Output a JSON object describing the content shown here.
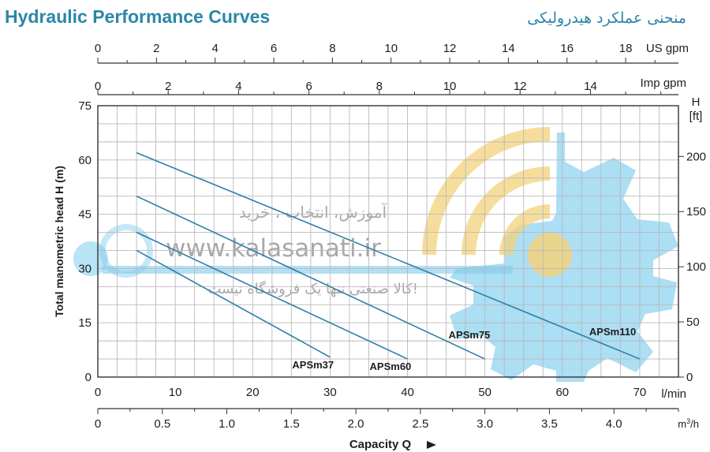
{
  "header": {
    "title_en": "Hydraulic Performance Curves",
    "title_fa": "منحنی عملکرد هیدرولیکی"
  },
  "watermark": {
    "line1": "آموزش، انتخاب ، خرید",
    "line2": "www.kalasanati.ir",
    "line3": "کالا صنعتی تنها یک فروشگاه نیست!"
  },
  "colors": {
    "curve": "#2f7fa8",
    "grid": "#b9b9b9",
    "watermark_gear": "#7fcdee",
    "watermark_arcs": "#f3d27a"
  },
  "chart_data": {
    "type": "line",
    "title": "Hydraulic Performance Curves",
    "x": {
      "label": "l/min",
      "range": [
        0,
        75
      ],
      "ticks": [
        0,
        10,
        20,
        30,
        40,
        50,
        60,
        70
      ],
      "grid_step": 2.5
    },
    "x_secondary": [
      {
        "label": "m³/h",
        "range": [
          0,
          4.5
        ],
        "ticks": [
          0,
          0.5,
          1.0,
          1.5,
          2.0,
          2.5,
          3.0,
          3.5,
          4.0
        ],
        "tick_labels": [
          "0",
          "0.5",
          "1.0",
          "1.5",
          "2.0",
          "2.5",
          "3.0",
          "3.5",
          "4.0"
        ]
      },
      {
        "label": "Imp gpm",
        "range": [
          0,
          16.5
        ],
        "ticks": [
          0,
          2,
          4,
          6,
          8,
          10,
          12,
          14
        ]
      },
      {
        "label": "US gpm",
        "range": [
          0,
          19.8
        ],
        "ticks": [
          0,
          2,
          4,
          6,
          8,
          10,
          12,
          14,
          16,
          18
        ]
      }
    ],
    "y": {
      "label": "Total manometric head H (m)",
      "range": [
        0,
        75
      ],
      "ticks": [
        0,
        15,
        30,
        45,
        60,
        75
      ],
      "grid_step": 5
    },
    "y_secondary": {
      "label": "H [ft]",
      "range": [
        0,
        246
      ],
      "ticks": [
        0,
        50,
        100,
        150,
        200
      ]
    },
    "axis_caption": "Capacity Q",
    "grid": true,
    "series": [
      {
        "name": "APSm37",
        "x": [
          5,
          30
        ],
        "y": [
          35,
          5.5
        ]
      },
      {
        "name": "APSm60",
        "x": [
          5,
          40
        ],
        "y": [
          40,
          5
        ]
      },
      {
        "name": "APSm75",
        "x": [
          5,
          50
        ],
        "y": [
          50,
          5
        ]
      },
      {
        "name": "APSm110",
        "x": [
          5,
          70
        ],
        "y": [
          62,
          5
        ]
      }
    ]
  }
}
